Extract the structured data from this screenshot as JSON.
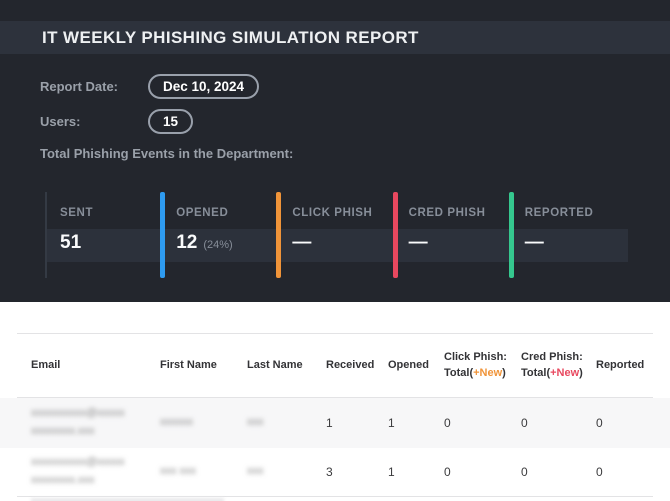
{
  "colors": {
    "accent_blue": "#2e9bf0",
    "accent_orange": "#f09439",
    "accent_red": "#e8485f",
    "accent_green": "#35c78e"
  },
  "header": {
    "title": "IT WEEKLY PHISHING SIMULATION REPORT"
  },
  "meta": {
    "report_date_label": "Report Date:",
    "report_date_value": "Dec 10, 2024",
    "users_label": "Users:",
    "users_value": "15",
    "totals_heading": "Total Phishing Events in the Department:"
  },
  "stats": {
    "columns": [
      {
        "label": "SENT",
        "value": "51",
        "sub": ""
      },
      {
        "label": "OPENED",
        "value": "12",
        "sub": "(24%)"
      },
      {
        "label": "CLICK PHISH",
        "value": "—",
        "sub": ""
      },
      {
        "label": "CRED PHISH",
        "value": "—",
        "sub": ""
      },
      {
        "label": "REPORTED",
        "value": "—",
        "sub": ""
      }
    ]
  },
  "table": {
    "headers": {
      "email": "Email",
      "first_name": "First Name",
      "last_name": "Last Name",
      "received": "Received",
      "opened": "Opened",
      "click_line1": "Click Phish:",
      "click_line2_prefix": "Total(",
      "click_line2_accent": "+New",
      "click_line2_suffix": ")",
      "cred_line1": "Cred Phish:",
      "cred_line2_prefix": "Total(",
      "cred_line2_accent": "+New",
      "cred_line2_suffix": ")",
      "reported": "Reported"
    },
    "rows": [
      {
        "email_line1": "xxxxxxxxxx@xxxxx",
        "email_line2": "xxxxxxxx.xxx",
        "first_name": "xxxxxx",
        "last_name": "xxx",
        "received": "1",
        "opened": "1",
        "click": "0",
        "cred": "0",
        "reported": "0"
      },
      {
        "email_line1": "xxxxxxxxxx@xxxxx",
        "email_line2": "xxxxxxxx.xxx",
        "first_name": "xxx xxx",
        "last_name": "xxx",
        "received": "3",
        "opened": "1",
        "click": "0",
        "cred": "0",
        "reported": "0"
      }
    ]
  }
}
